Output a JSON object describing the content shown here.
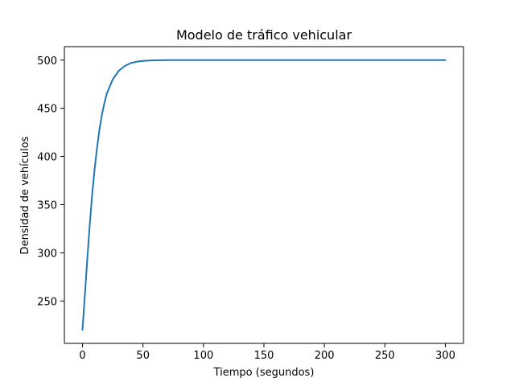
{
  "chart_data": {
    "type": "line",
    "title": "Modelo de tráfico vehicular",
    "xlabel": "Tiempo (segundos)",
    "ylabel": "Densidad de vehículos",
    "xlim": [
      -15,
      315
    ],
    "ylim": [
      206,
      514
    ],
    "x_ticks": [
      0,
      50,
      100,
      150,
      200,
      250,
      300
    ],
    "x_tick_labels": [
      "0",
      "50",
      "100",
      "150",
      "200",
      "250",
      "300"
    ],
    "y_ticks": [
      250,
      300,
      350,
      400,
      450,
      500
    ],
    "y_tick_labels": [
      "250",
      "300",
      "350",
      "400",
      "450",
      "500"
    ],
    "grid": false,
    "legend": "none",
    "series": [
      {
        "color": "#1f77b4",
        "x": [
          0,
          2,
          4,
          6,
          8,
          10,
          12,
          14,
          16,
          18,
          20,
          25,
          30,
          35,
          40,
          45,
          50,
          55,
          60,
          70,
          80,
          90,
          100,
          125,
          150,
          175,
          200,
          225,
          250,
          275,
          300
        ],
        "y": [
          220,
          258,
          295,
          330,
          361,
          387,
          409,
          428,
          443,
          455,
          465,
          480,
          489,
          494,
          497,
          498.5,
          499.2,
          499.6,
          499.8,
          499.95,
          500,
          500,
          500,
          500,
          500,
          500,
          500,
          500,
          500,
          500,
          500
        ]
      }
    ]
  }
}
